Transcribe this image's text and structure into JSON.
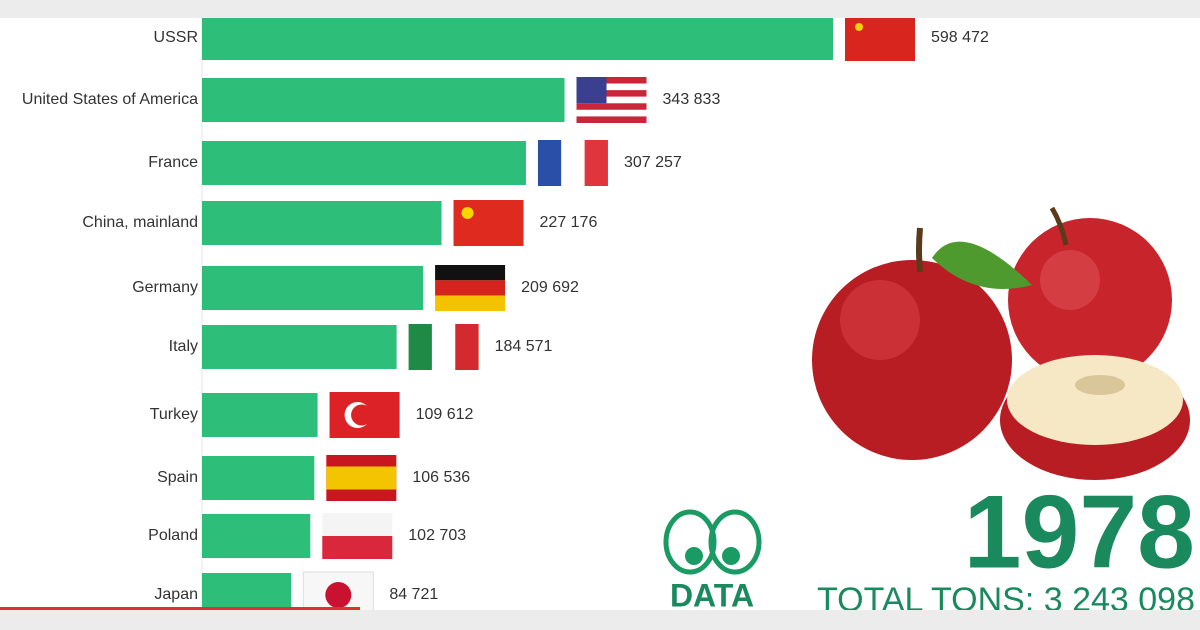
{
  "chart_data": {
    "type": "bar",
    "orientation": "horizontal",
    "categories": [
      "USSR",
      "United States of America",
      "France",
      "China, mainland",
      "Germany",
      "Italy",
      "Turkey",
      "Spain",
      "Poland",
      "Japan"
    ],
    "values": [
      598472,
      343833,
      307257,
      227176,
      209692,
      184571,
      109612,
      106536,
      102703,
      84721
    ],
    "value_labels": [
      "598 472",
      "343 833",
      "307 257",
      "227 176",
      "209 692",
      "184 571",
      "109 612",
      "106 536",
      "102 703",
      "84 721"
    ],
    "color": "#2dbf7a",
    "year": "1978",
    "total_label": "TOTAL TONS: 3 243 098",
    "logo_text": "DATA"
  }
}
